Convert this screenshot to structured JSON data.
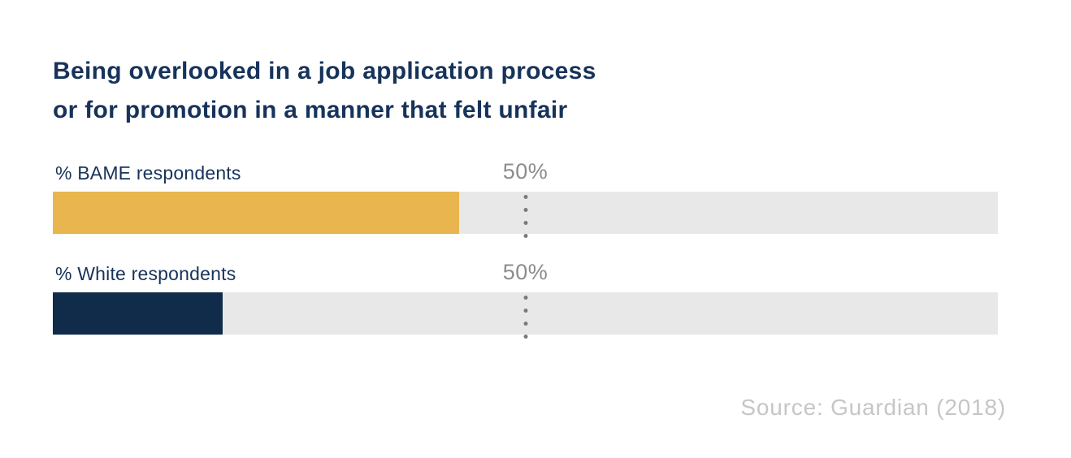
{
  "title": {
    "lines": [
      "Being overlooked in a job application process",
      "or for promotion in a manner that felt unfair"
    ]
  },
  "source": "Source: Guardian (2018)",
  "colors": {
    "title_text": "#17335A",
    "label_text": "#17335A",
    "bar_bame": "#E9B54E",
    "bar_white": "#112C4A",
    "track": "#E8E8E8",
    "reference_label": "#8C8C8C",
    "reference_dots": "#7B7B7B",
    "source_text": "#C6C6C6"
  },
  "chart_data": {
    "type": "bar",
    "orientation": "horizontal",
    "title": "Being overlooked in a job application process or for promotion in a manner that felt unfair",
    "categories": [
      "% BAME respondents",
      "% White respondents"
    ],
    "values": [
      43,
      18
    ],
    "value_unit": "%",
    "xlim": [
      0,
      100
    ],
    "grid": false,
    "legend": false,
    "reference_line": {
      "value": 50,
      "label": "50%",
      "style": "dotted"
    },
    "series_colors": [
      "#E9B54E",
      "#112C4A"
    ],
    "track_color": "#E8E8E8",
    "source": "Source: Guardian (2018)"
  }
}
